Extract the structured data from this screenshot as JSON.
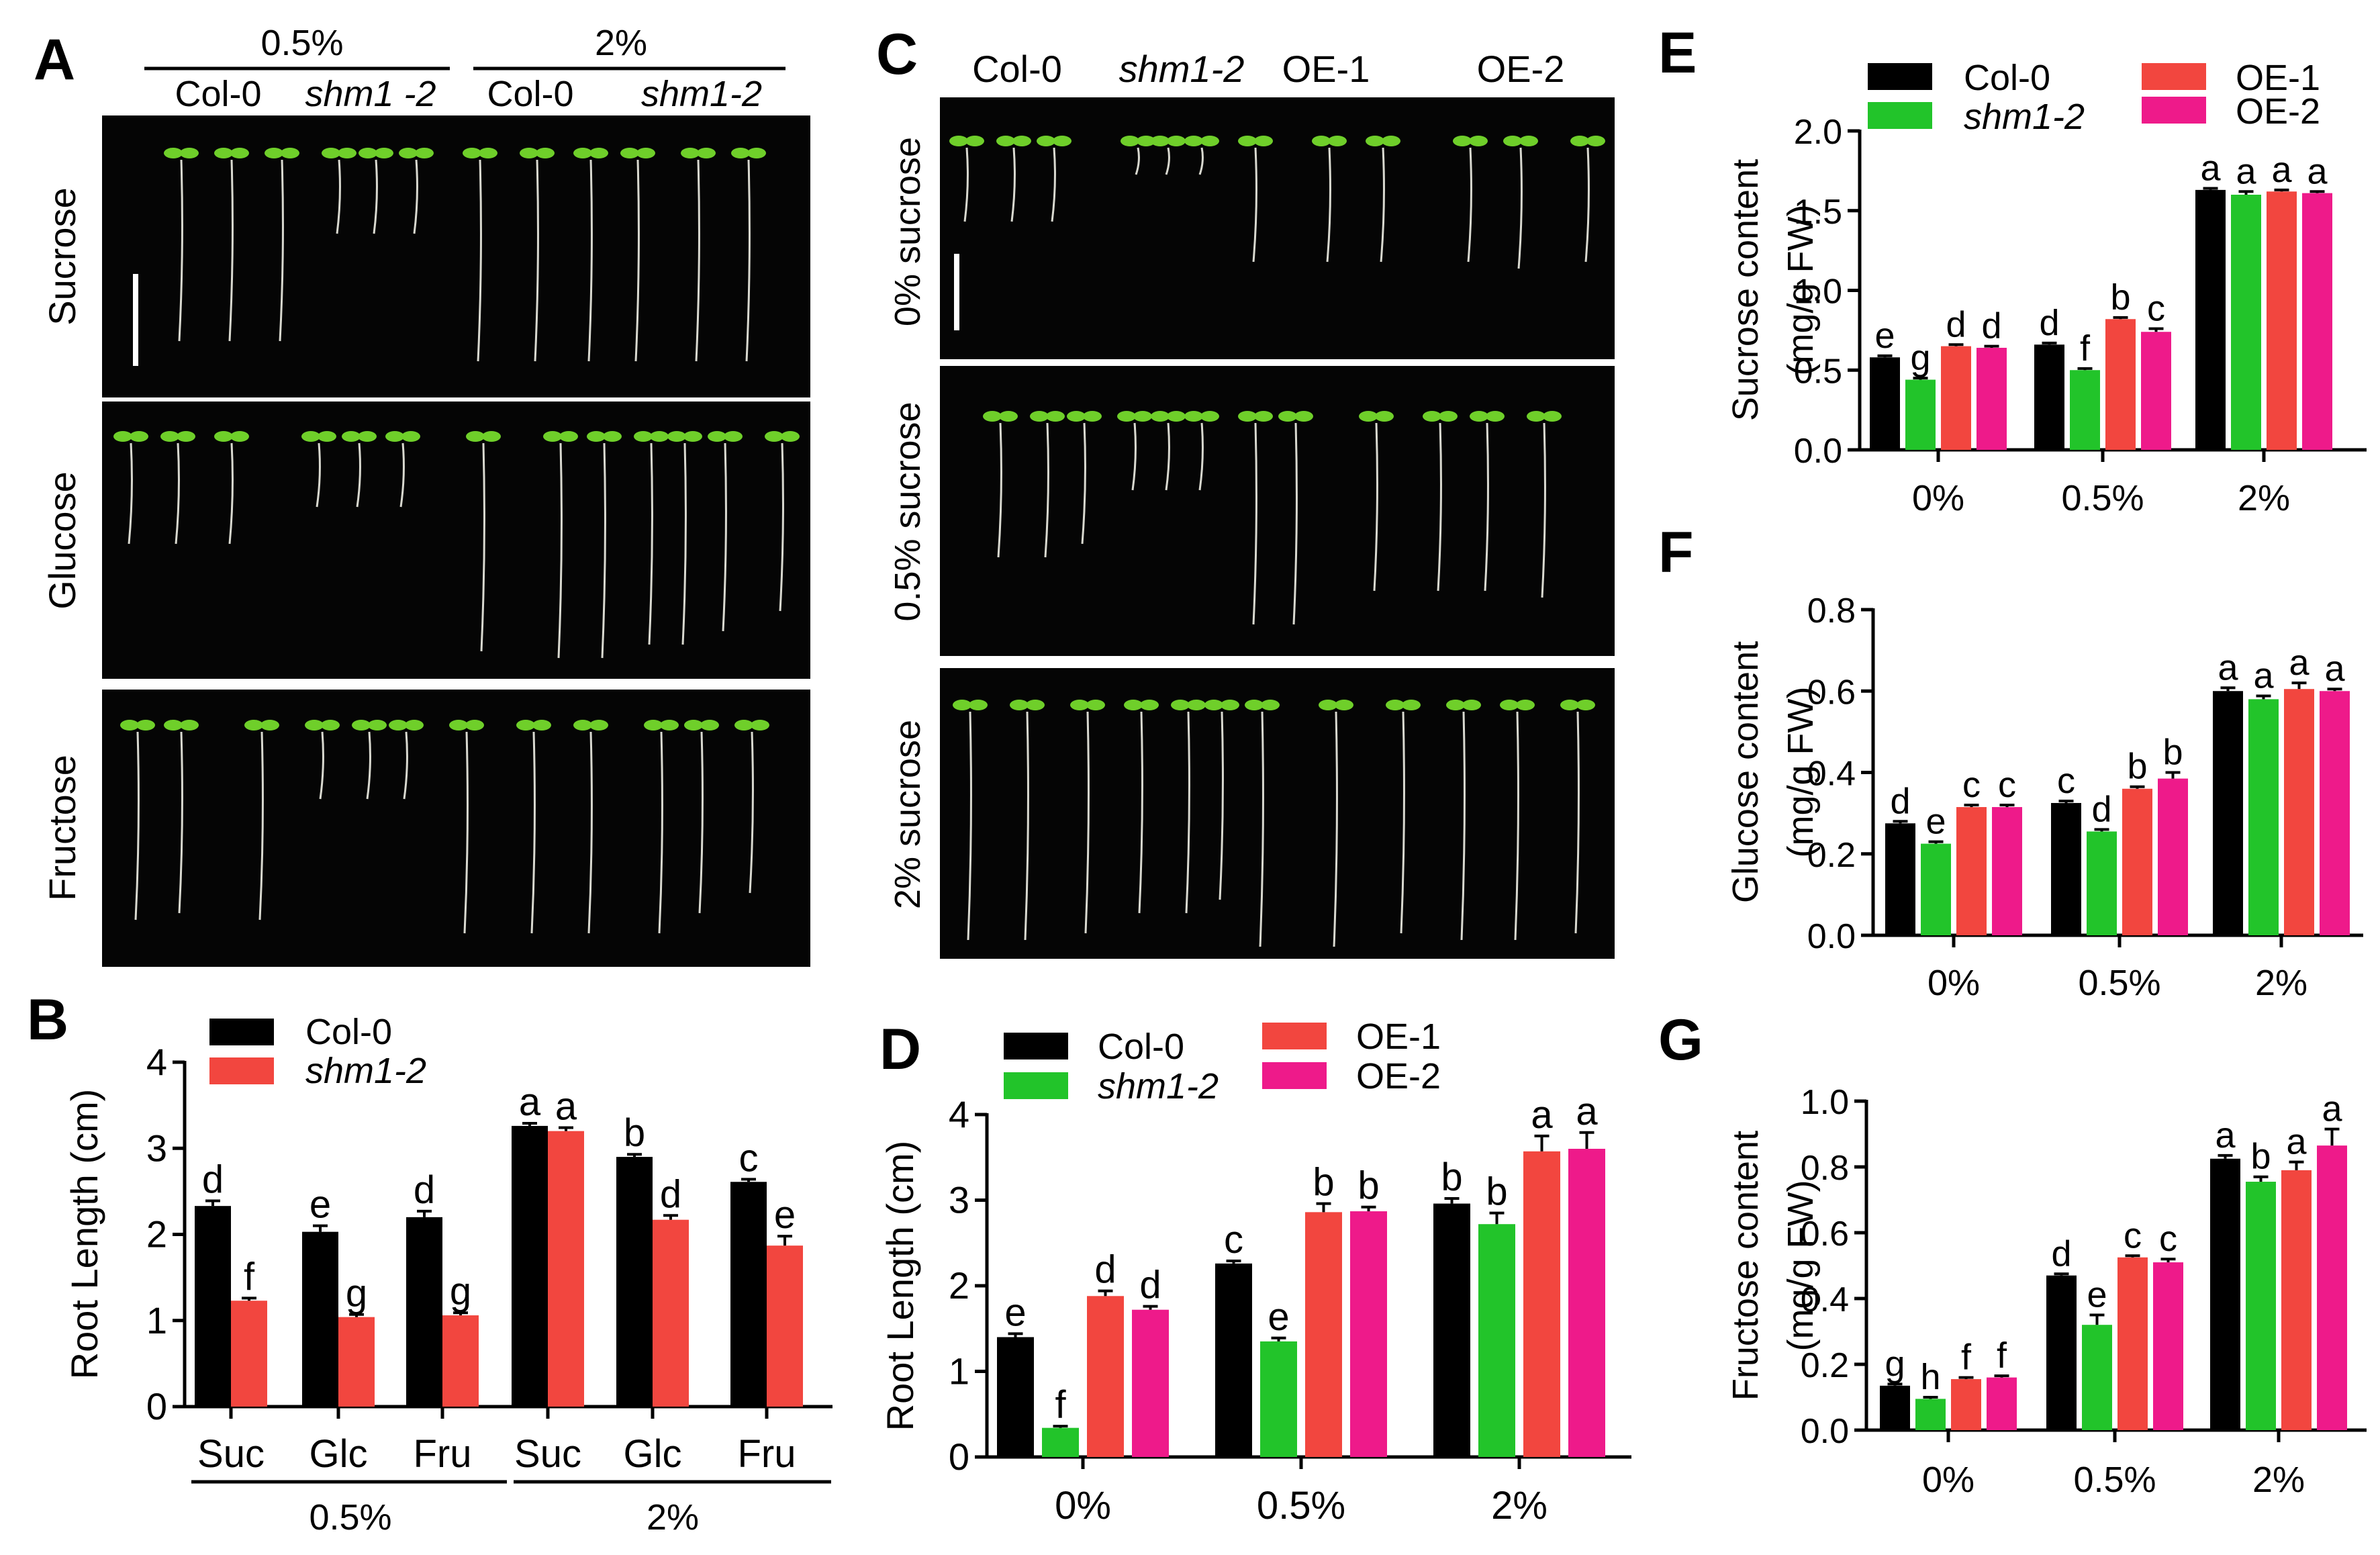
{
  "colors": {
    "col0": "#000000",
    "shm1": "#22c42a",
    "shm1_b": "#f2463f",
    "oe1": "#f2463f",
    "oe2": "#ee1a8a",
    "seedling": "#6fcf2a"
  },
  "panel_a": {
    "letter": "A",
    "top_groups": [
      "0.5%",
      "2%"
    ],
    "sub_labels": [
      "Col-0",
      "shm1 -2",
      "Col-0",
      "shm1-2"
    ],
    "rows": [
      "Sucrose",
      "Glucose",
      "Fructose"
    ]
  },
  "panel_c": {
    "letter": "C",
    "col_labels": [
      "Col-0",
      "shm1-2",
      "OE-1",
      "OE-2"
    ],
    "rows": [
      "0% sucrose",
      "0.5% sucrose",
      "2% sucrose"
    ]
  },
  "chart_data": [
    {
      "panel": "B",
      "type": "bar",
      "ylabel": "Root Length (cm)",
      "ylim": [
        0,
        4
      ],
      "yticks": [
        0,
        1,
        2,
        3,
        4
      ],
      "categories": [
        "Suc",
        "Glc",
        "Fru",
        "Suc",
        "Glc",
        "Fru"
      ],
      "groups": [
        "0.5%",
        "2%"
      ],
      "legend": [
        "Col-0",
        "shm1-2"
      ],
      "series": [
        {
          "name": "Col-0",
          "values": [
            2.33,
            2.03,
            2.2,
            3.26,
            2.9,
            2.61
          ],
          "errors": [
            0.06,
            0.07,
            0.07,
            0.03,
            0.03,
            0.03
          ],
          "letters": [
            "d",
            "e",
            "d",
            "a",
            "b",
            "c"
          ]
        },
        {
          "name": "shm1-2",
          "values": [
            1.23,
            1.04,
            1.06,
            3.2,
            2.17,
            1.87
          ],
          "errors": [
            0.03,
            0.03,
            0.03,
            0.04,
            0.05,
            0.11
          ],
          "letters": [
            "f",
            "g",
            "g",
            "a",
            "d",
            "e"
          ]
        }
      ]
    },
    {
      "panel": "D",
      "type": "bar",
      "ylabel": "Root Length (cm)",
      "ylim": [
        0,
        4
      ],
      "yticks": [
        0,
        1,
        2,
        3,
        4
      ],
      "categories": [
        "0%",
        "0.5%",
        "2%"
      ],
      "legend": [
        "Col-0",
        "shm1-2",
        "OE-1",
        "OE-2"
      ],
      "series": [
        {
          "name": "Col-0",
          "values": [
            1.4,
            2.26,
            2.96
          ],
          "errors": [
            0.04,
            0.03,
            0.06
          ],
          "letters": [
            "e",
            "c",
            "b"
          ]
        },
        {
          "name": "shm1-2",
          "values": [
            0.34,
            1.35,
            2.72
          ],
          "errors": [
            0.02,
            0.04,
            0.13
          ],
          "letters": [
            "f",
            "e",
            "b"
          ]
        },
        {
          "name": "OE-1",
          "values": [
            1.88,
            2.86,
            3.57
          ],
          "errors": [
            0.06,
            0.1,
            0.18
          ],
          "letters": [
            "d",
            "b",
            "a"
          ]
        },
        {
          "name": "OE-2",
          "values": [
            1.72,
            2.87,
            3.6
          ],
          "errors": [
            0.04,
            0.05,
            0.19
          ],
          "letters": [
            "d",
            "b",
            "a"
          ]
        }
      ]
    },
    {
      "panel": "E",
      "type": "bar",
      "ylabel": "Sucrose content",
      "ylabel2": "(mg/g FW)",
      "ylim": [
        0,
        2
      ],
      "yticks": [
        "0.0",
        "0.5",
        "1.0",
        "1.5",
        "2.0"
      ],
      "categories": [
        "0%",
        "0.5%",
        "2%"
      ],
      "legend": [
        "Col-0",
        "shm1-2",
        "OE-1",
        "OE-2"
      ],
      "series": [
        {
          "name": "Col-0",
          "values": [
            0.58,
            0.66,
            1.63
          ],
          "errors": [
            0.01,
            0.01,
            0.01
          ],
          "letters": [
            "e",
            "d",
            "a"
          ]
        },
        {
          "name": "shm1-2",
          "values": [
            0.44,
            0.5,
            1.6
          ],
          "errors": [
            0.01,
            0.01,
            0.02
          ],
          "letters": [
            "g",
            "f",
            "a"
          ]
        },
        {
          "name": "OE-1",
          "values": [
            0.65,
            0.82,
            1.62
          ],
          "errors": [
            0.01,
            0.01,
            0.01
          ],
          "letters": [
            "d",
            "b",
            "a"
          ]
        },
        {
          "name": "OE-2",
          "values": [
            0.64,
            0.74,
            1.61
          ],
          "errors": [
            0.01,
            0.02,
            0.01
          ],
          "letters": [
            "d",
            "c",
            "a"
          ]
        }
      ]
    },
    {
      "panel": "F",
      "type": "bar",
      "ylabel": "Glucose content",
      "ylabel2": "(mg/g FW)",
      "ylim": [
        0,
        0.8
      ],
      "yticks": [
        "0.0",
        "0.2",
        "0.4",
        "0.6",
        "0.8"
      ],
      "categories": [
        "0%",
        "0.5%",
        "2%"
      ],
      "series": [
        {
          "name": "Col-0",
          "values": [
            0.275,
            0.325,
            0.6
          ],
          "errors": [
            0.005,
            0.005,
            0.008
          ],
          "letters": [
            "d",
            "c",
            "a"
          ]
        },
        {
          "name": "shm1-2",
          "values": [
            0.225,
            0.255,
            0.58
          ],
          "errors": [
            0.005,
            0.005,
            0.008
          ],
          "letters": [
            "e",
            "d",
            "a"
          ]
        },
        {
          "name": "OE-1",
          "values": [
            0.315,
            0.36,
            0.605
          ],
          "errors": [
            0.005,
            0.005,
            0.015
          ],
          "letters": [
            "c",
            "b",
            "a"
          ]
        },
        {
          "name": "OE-2",
          "values": [
            0.315,
            0.385,
            0.6
          ],
          "errors": [
            0.005,
            0.015,
            0.005
          ],
          "letters": [
            "c",
            "b",
            "a"
          ]
        }
      ]
    },
    {
      "panel": "G",
      "type": "bar",
      "ylabel": "Fructose content",
      "ylabel2": "(mg/g FW)",
      "ylim": [
        0,
        1
      ],
      "yticks": [
        "0.0",
        "0.2",
        "0.4",
        "0.6",
        "0.8",
        "1.0"
      ],
      "categories": [
        "0%",
        "0.5%",
        "2%"
      ],
      "series": [
        {
          "name": "Col-0",
          "values": [
            0.135,
            0.47,
            0.825
          ],
          "errors": [
            0.005,
            0.005,
            0.01
          ],
          "letters": [
            "g",
            "d",
            "a"
          ]
        },
        {
          "name": "shm1-2",
          "values": [
            0.095,
            0.32,
            0.755
          ],
          "errors": [
            0.005,
            0.03,
            0.015
          ],
          "letters": [
            "h",
            "e",
            "b"
          ]
        },
        {
          "name": "OE-1",
          "values": [
            0.155,
            0.525,
            0.79
          ],
          "errors": [
            0.005,
            0.005,
            0.025
          ],
          "letters": [
            "f",
            "c",
            "a"
          ]
        },
        {
          "name": "OE-2",
          "values": [
            0.16,
            0.51,
            0.865
          ],
          "errors": [
            0.005,
            0.01,
            0.05
          ],
          "letters": [
            "f",
            "c",
            "a"
          ]
        }
      ]
    }
  ]
}
